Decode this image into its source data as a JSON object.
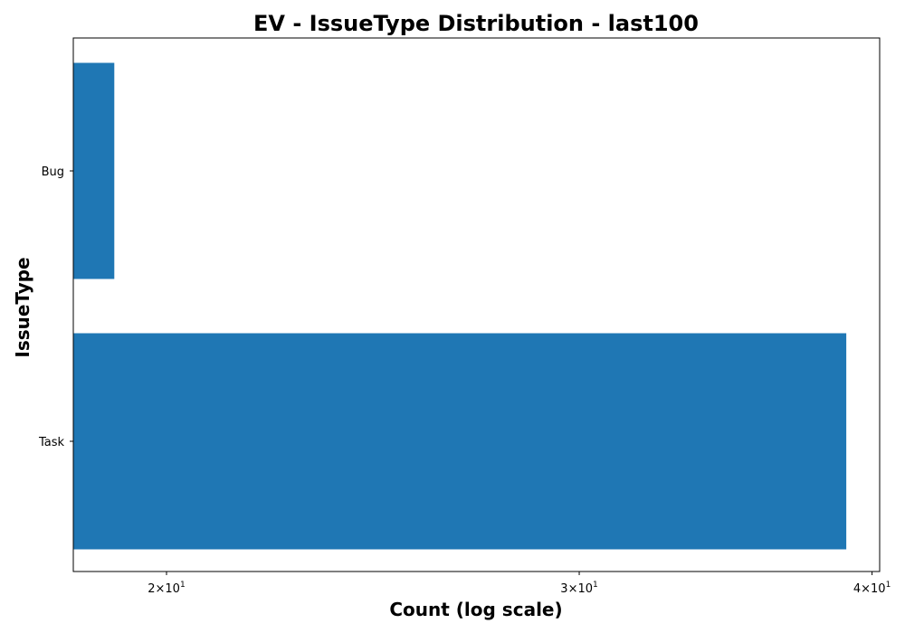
{
  "chart_data": {
    "type": "bar",
    "orientation": "horizontal",
    "title": "EV - IssueType Distribution - last100",
    "xlabel": "Count (log scale)",
    "ylabel": "IssueType",
    "x_scale": "log",
    "xlim": [
      18.25,
      40.3
    ],
    "x_ticks": [
      {
        "value": 20,
        "mantissa": "2",
        "base": "10",
        "exp": "1"
      },
      {
        "value": 30,
        "mantissa": "3",
        "base": "10",
        "exp": "1"
      },
      {
        "value": 40,
        "mantissa": "4",
        "base": "10",
        "exp": "1"
      }
    ],
    "categories": [
      "Bug",
      "Task"
    ],
    "values": [
      19,
      39
    ],
    "bar_color": "#1f77b4",
    "grid": false,
    "legend": "none"
  }
}
